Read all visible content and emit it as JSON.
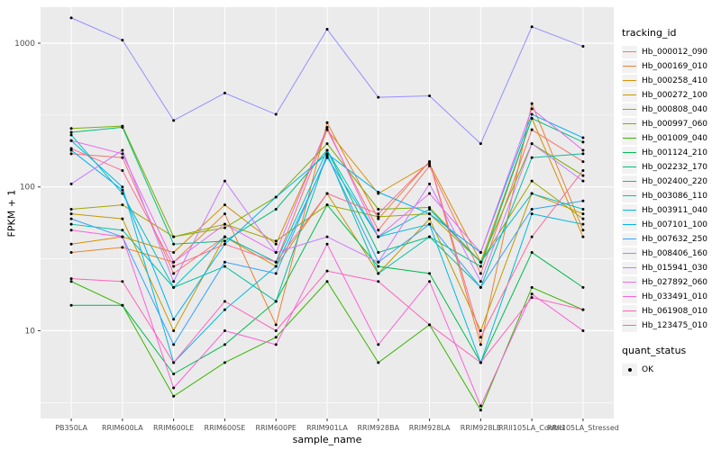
{
  "chart_data": {
    "type": "line",
    "title": "",
    "xlabel": "sample_name",
    "ylabel": "FPKM + 1",
    "y_scale": "log10",
    "y_ticks": [
      10,
      100,
      1000
    ],
    "y_minor_ticks": [
      3.162,
      31.62,
      316.2
    ],
    "y_domain": [
      2.45,
      1780
    ],
    "grid": "on",
    "legend_position": "right",
    "legend_title": "tracking_id",
    "quant_legend_title": "quant_status",
    "quant_status_label": "OK",
    "point_color": "#000000",
    "panel_color": "#EBEBEB",
    "categories": [
      "PB350LA",
      "RRIM600LA",
      "RRIM600LE",
      "RRIM600SE",
      "RRIM600PE",
      "RRIM901LA",
      "RRIM928BA",
      "RRIM928LA",
      "RRIM928LE",
      "RRII105LA_Control",
      "RRII105LA_Stressed"
    ],
    "series": [
      {
        "name": "Hb_000012_090",
        "color": "#F8766D",
        "values": [
          170,
          160,
          25,
          45,
          30,
          250,
          50,
          140,
          25,
          250,
          150
        ]
      },
      {
        "name": "Hb_000169_010",
        "color": "#EA8331",
        "values": [
          35,
          38,
          30,
          65,
          11,
          280,
          60,
          150,
          8,
          380,
          50
        ]
      },
      {
        "name": "Hb_000258_410",
        "color": "#D89000",
        "values": [
          40,
          45,
          35,
          75,
          40,
          250,
          90,
          145,
          30,
          300,
          45
        ]
      },
      {
        "name": "Hb_000272_100",
        "color": "#C09B00",
        "values": [
          65,
          60,
          10,
          45,
          28,
          90,
          25,
          60,
          10,
          90,
          65
        ]
      },
      {
        "name": "Hb_000808_040",
        "color": "#A3A500",
        "values": [
          70,
          75,
          45,
          55,
          42,
          75,
          62,
          65,
          30,
          110,
          60
        ]
      },
      {
        "name": "Hb_000997_060",
        "color": "#7CAE00",
        "values": [
          255,
          265,
          45,
          52,
          85,
          200,
          70,
          72,
          30,
          200,
          120
        ]
      },
      {
        "name": "Hb_001009_040",
        "color": "#39B600",
        "values": [
          22,
          15,
          3.5,
          6,
          9,
          22,
          6,
          11,
          2.8,
          20,
          14
        ]
      },
      {
        "name": "Hb_001124_210",
        "color": "#00BB4E",
        "values": [
          15,
          15,
          5,
          8,
          16,
          75,
          28,
          25,
          6,
          35,
          20
        ]
      },
      {
        "name": "Hb_002232_170",
        "color": "#00BF7D",
        "values": [
          240,
          260,
          40,
          42,
          70,
          180,
          35,
          45,
          28,
          300,
          205
        ]
      },
      {
        "name": "Hb_002400_220",
        "color": "#00C1A3",
        "values": [
          55,
          50,
          20,
          28,
          16,
          170,
          25,
          45,
          20,
          160,
          170
        ]
      },
      {
        "name": "Hb_003086_110",
        "color": "#00BFC4",
        "values": [
          230,
          90,
          20,
          45,
          30,
          180,
          45,
          70,
          30,
          90,
          70
        ]
      },
      {
        "name": "Hb_003911_040",
        "color": "#00BAE0",
        "values": [
          210,
          100,
          6,
          14,
          28,
          160,
          45,
          55,
          6,
          65,
          55
        ]
      },
      {
        "name": "Hb_007101_100",
        "color": "#00B0F6",
        "values": [
          180,
          95,
          12,
          40,
          85,
          170,
          92,
          65,
          35,
          320,
          220
        ]
      },
      {
        "name": "Hb_007632_250",
        "color": "#35A2FF",
        "values": [
          60,
          45,
          8,
          30,
          25,
          165,
          30,
          55,
          20,
          70,
          80
        ]
      },
      {
        "name": "Hb_008406_160",
        "color": "#9590FF",
        "values": [
          1500,
          1050,
          290,
          450,
          320,
          1250,
          420,
          430,
          200,
          1300,
          950
        ]
      },
      {
        "name": "Hb_015941_030",
        "color": "#C77CFF",
        "values": [
          105,
          180,
          22,
          110,
          35,
          45,
          30,
          105,
          22,
          200,
          110
        ]
      },
      {
        "name": "Hb_027892_060",
        "color": "#E76BF3",
        "values": [
          210,
          170,
          30,
          55,
          35,
          260,
          45,
          90,
          35,
          350,
          180
        ]
      },
      {
        "name": "Hb_033491_010",
        "color": "#FA62DB",
        "values": [
          50,
          45,
          4,
          10,
          8,
          40,
          8,
          22,
          3,
          18,
          10
        ]
      },
      {
        "name": "Hb_061908_010",
        "color": "#FF62BC",
        "values": [
          23,
          22,
          6,
          16,
          10,
          26,
          22,
          11,
          6,
          17,
          14
        ]
      },
      {
        "name": "Hb_123475_010",
        "color": "#FF6A98",
        "values": [
          185,
          130,
          28,
          40,
          30,
          90,
          65,
          150,
          9,
          45,
          130
        ]
      }
    ]
  }
}
